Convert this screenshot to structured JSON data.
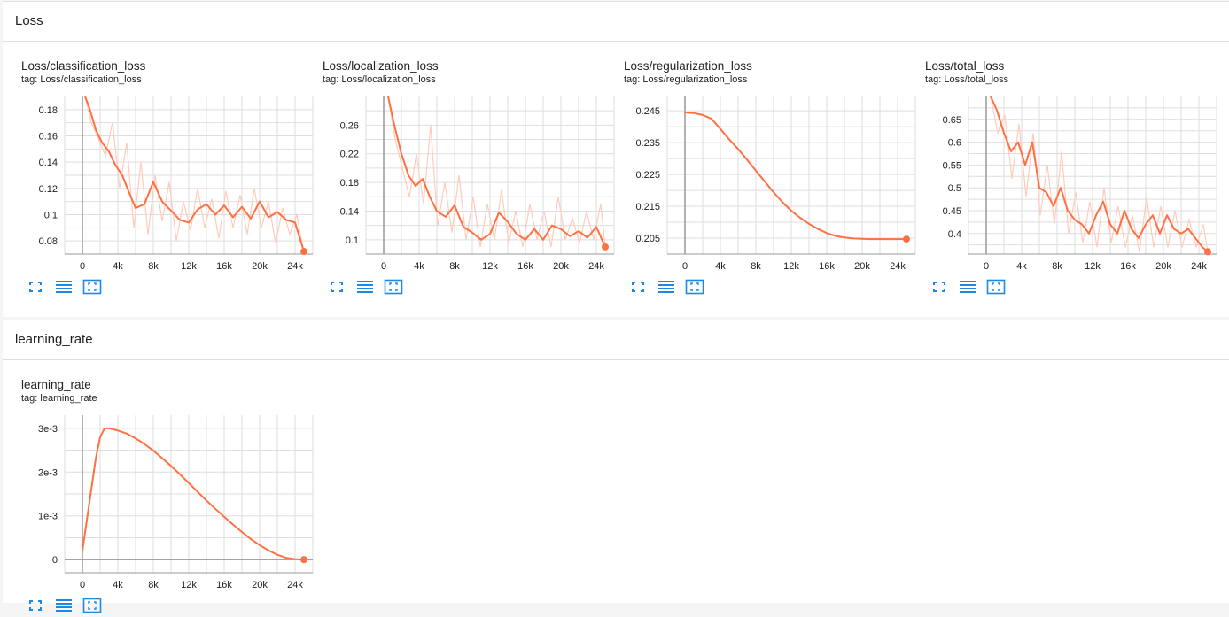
{
  "sections": [
    {
      "title": "Loss",
      "cards": [
        {
          "title": "Loss/classification_loss",
          "tag": "tag: Loss/classification_loss",
          "chart_data": {
            "type": "line",
            "x_ticks": [
              0,
              4000,
              8000,
              12000,
              16000,
              20000,
              24000
            ],
            "x_tick_labels": [
              "0",
              "4k",
              "8k",
              "12k",
              "16k",
              "20k",
              "24k"
            ],
            "xlim": [
              -2000,
              26000
            ],
            "y_ticks": [
              0.08,
              0.1,
              0.12,
              0.14,
              0.16,
              0.18
            ],
            "y_tick_labels": [
              "0.08",
              "0.1",
              "0.12",
              "0.14",
              "0.16",
              "0.18"
            ],
            "ylim": [
              0.07,
              0.19
            ],
            "grid": true,
            "smoothed": {
              "x": [
                300,
                800,
                1500,
                2200,
                3000,
                3700,
                4500,
                5200,
                6000,
                7000,
                8000,
                9000,
                10000,
                11000,
                12000,
                13000,
                14000,
                15000,
                16000,
                17000,
                18000,
                19000,
                20000,
                21000,
                22000,
                23000,
                24000,
                25000
              ],
              "y": [
                0.19,
                0.181,
                0.165,
                0.155,
                0.148,
                0.138,
                0.13,
                0.118,
                0.105,
                0.108,
                0.125,
                0.11,
                0.103,
                0.096,
                0.094,
                0.104,
                0.108,
                0.1,
                0.107,
                0.098,
                0.106,
                0.097,
                0.11,
                0.098,
                0.102,
                0.096,
                0.094,
                0.072
              ]
            },
            "raw": {
              "x": [
                300,
                1000,
                1800,
                2600,
                3400,
                4200,
                5000,
                5800,
                6600,
                7400,
                8200,
                9000,
                9800,
                10600,
                11400,
                12200,
                13000,
                13800,
                14600,
                15400,
                16200,
                17000,
                17800,
                18600,
                19400,
                20200,
                21000,
                21800,
                22600,
                23400,
                24200,
                25000
              ],
              "y": [
                0.19,
                0.17,
                0.158,
                0.145,
                0.17,
                0.12,
                0.155,
                0.09,
                0.14,
                0.085,
                0.13,
                0.095,
                0.125,
                0.08,
                0.11,
                0.088,
                0.12,
                0.09,
                0.112,
                0.082,
                0.118,
                0.09,
                0.115,
                0.085,
                0.12,
                0.09,
                0.11,
                0.078,
                0.105,
                0.085,
                0.1,
                0.07
              ]
            }
          }
        },
        {
          "title": "Loss/localization_loss",
          "tag": "tag: Loss/localization_loss",
          "chart_data": {
            "type": "line",
            "x_ticks": [
              0,
              4000,
              8000,
              12000,
              16000,
              20000,
              24000
            ],
            "x_tick_labels": [
              "0",
              "4k",
              "8k",
              "12k",
              "16k",
              "20k",
              "24k"
            ],
            "xlim": [
              -2000,
              26000
            ],
            "y_ticks": [
              0.1,
              0.14,
              0.18,
              0.22,
              0.26
            ],
            "y_tick_labels": [
              "0.1",
              "0.14",
              "0.18",
              "0.22",
              "0.26"
            ],
            "ylim": [
              0.08,
              0.3
            ],
            "grid": true,
            "smoothed": {
              "x": [
                500,
                1200,
                2000,
                2800,
                3600,
                4400,
                5200,
                6000,
                7000,
                8000,
                9000,
                10000,
                11000,
                12000,
                13000,
                14000,
                15000,
                16000,
                17000,
                18000,
                19000,
                20000,
                21000,
                22000,
                23000,
                24000,
                25000
              ],
              "y": [
                0.3,
                0.26,
                0.22,
                0.19,
                0.175,
                0.185,
                0.16,
                0.14,
                0.132,
                0.148,
                0.118,
                0.11,
                0.1,
                0.108,
                0.138,
                0.125,
                0.108,
                0.1,
                0.115,
                0.1,
                0.12,
                0.115,
                0.105,
                0.112,
                0.103,
                0.118,
                0.09
              ]
            },
            "raw": {
              "x": [
                500,
                1300,
                2100,
                2900,
                3700,
                4500,
                5300,
                6100,
                6900,
                7700,
                8500,
                9300,
                10100,
                10900,
                11700,
                12500,
                13300,
                14100,
                14900,
                15700,
                16500,
                17300,
                18100,
                18900,
                19700,
                20500,
                21300,
                22100,
                22900,
                23700,
                24500,
                25000
              ],
              "y": [
                0.3,
                0.24,
                0.2,
                0.16,
                0.22,
                0.15,
                0.26,
                0.12,
                0.18,
                0.11,
                0.19,
                0.1,
                0.16,
                0.09,
                0.15,
                0.1,
                0.17,
                0.095,
                0.14,
                0.09,
                0.15,
                0.1,
                0.14,
                0.09,
                0.16,
                0.1,
                0.13,
                0.095,
                0.14,
                0.1,
                0.15,
                0.09
              ]
            }
          }
        },
        {
          "title": "Loss/regularization_loss",
          "tag": "tag: Loss/regularization_loss",
          "chart_data": {
            "type": "line",
            "x_ticks": [
              0,
              4000,
              8000,
              12000,
              16000,
              20000,
              24000
            ],
            "x_tick_labels": [
              "0",
              "4k",
              "8k",
              "12k",
              "16k",
              "20k",
              "24k"
            ],
            "xlim": [
              -2000,
              26000
            ],
            "y_ticks": [
              0.205,
              0.215,
              0.225,
              0.235,
              0.245
            ],
            "y_tick_labels": [
              "0.205",
              "0.215",
              "0.225",
              "0.235",
              "0.245"
            ],
            "ylim": [
              0.2,
              0.2495
            ],
            "grid": true,
            "smoothed": {
              "x": [
                0,
                1000,
                2000,
                3000,
                4000,
                5000,
                6000,
                7000,
                8000,
                9000,
                10000,
                11000,
                12000,
                13000,
                14000,
                15000,
                16000,
                17000,
                18000,
                19000,
                20000,
                21000,
                22000,
                23000,
                24000,
                25000
              ],
              "y": [
                0.2445,
                0.2443,
                0.2437,
                0.2425,
                0.2393,
                0.236,
                0.233,
                0.2297,
                0.2262,
                0.2228,
                0.2194,
                0.2163,
                0.2136,
                0.2114,
                0.2095,
                0.2079,
                0.2066,
                0.2057,
                0.2052,
                0.2049,
                0.2048,
                0.2047,
                0.2047,
                0.2047,
                0.2047,
                0.2047
              ]
            }
          }
        },
        {
          "title": "Loss/total_loss",
          "tag": "tag: Loss/total_loss",
          "chart_data": {
            "type": "line",
            "x_ticks": [
              0,
              4000,
              8000,
              12000,
              16000,
              20000,
              24000
            ],
            "x_tick_labels": [
              "0",
              "4k",
              "8k",
              "12k",
              "16k",
              "20k",
              "24k"
            ],
            "xlim": [
              -2000,
              26000
            ],
            "y_ticks": [
              0.4,
              0.45,
              0.5,
              0.55,
              0.6,
              0.65
            ],
            "y_tick_labels": [
              "0.4",
              "0.45",
              "0.5",
              "0.55",
              "0.6",
              "0.65"
            ],
            "ylim": [
              0.355,
              0.7
            ],
            "grid": true,
            "smoothed": {
              "x": [
                500,
                1200,
                2000,
                2800,
                3600,
                4400,
                5200,
                6000,
                6800,
                7600,
                8400,
                9200,
                10000,
                10800,
                11600,
                12400,
                13200,
                14000,
                14800,
                15600,
                16400,
                17200,
                18000,
                18800,
                19600,
                20400,
                21200,
                22000,
                22800,
                23600,
                24400,
                25000
              ],
              "y": [
                0.7,
                0.67,
                0.62,
                0.58,
                0.6,
                0.55,
                0.6,
                0.5,
                0.49,
                0.46,
                0.5,
                0.45,
                0.43,
                0.42,
                0.4,
                0.44,
                0.47,
                0.42,
                0.4,
                0.45,
                0.41,
                0.39,
                0.42,
                0.44,
                0.4,
                0.44,
                0.41,
                0.4,
                0.41,
                0.39,
                0.37,
                0.36
              ]
            },
            "raw": {
              "x": [
                500,
                1300,
                2100,
                2900,
                3700,
                4500,
                5300,
                6100,
                6900,
                7700,
                8500,
                9300,
                10100,
                10900,
                11700,
                12500,
                13300,
                14100,
                14900,
                15700,
                16500,
                17300,
                18100,
                18900,
                19700,
                20500,
                21300,
                22100,
                22900,
                23700,
                24500,
                25000
              ],
              "y": [
                0.7,
                0.62,
                0.66,
                0.52,
                0.64,
                0.48,
                0.62,
                0.44,
                0.55,
                0.42,
                0.58,
                0.4,
                0.49,
                0.38,
                0.47,
                0.37,
                0.5,
                0.38,
                0.46,
                0.37,
                0.44,
                0.36,
                0.48,
                0.37,
                0.46,
                0.37,
                0.45,
                0.37,
                0.43,
                0.37,
                0.42,
                0.36
              ]
            }
          }
        }
      ]
    },
    {
      "title": "learning_rate",
      "cards": [
        {
          "title": "learning_rate",
          "tag": "tag: learning_rate",
          "chart_data": {
            "type": "line",
            "x_ticks": [
              0,
              4000,
              8000,
              12000,
              16000,
              20000,
              24000
            ],
            "x_tick_labels": [
              "0",
              "4k",
              "8k",
              "12k",
              "16k",
              "20k",
              "24k"
            ],
            "xlim": [
              -2000,
              26000
            ],
            "y_ticks": [
              0,
              0.001,
              0.002,
              0.003
            ],
            "y_tick_labels": [
              "0",
              "1e-3",
              "2e-3",
              "3e-3"
            ],
            "ylim": [
              -0.0003,
              0.0033
            ],
            "grid": true,
            "smoothed": {
              "x": [
                0,
                500,
                1000,
                1500,
                2000,
                2500,
                3000,
                4000,
                5000,
                6000,
                7000,
                8000,
                9000,
                10000,
                11000,
                12000,
                13000,
                14000,
                15000,
                16000,
                17000,
                18000,
                19000,
                20000,
                21000,
                22000,
                23000,
                24000,
                25000
              ],
              "y": [
                0.0002,
                0.0009,
                0.0016,
                0.0023,
                0.0028,
                0.003,
                0.003,
                0.00295,
                0.00288,
                0.00277,
                0.00264,
                0.00249,
                0.00232,
                0.00214,
                0.00195,
                0.00175,
                0.00155,
                0.00135,
                0.00116,
                0.00098,
                0.0008,
                0.00063,
                0.00047,
                0.00033,
                0.00021,
                0.00011,
                4e-05,
                1e-05,
                0
              ]
            }
          }
        }
      ]
    }
  ],
  "colors": {
    "line": "#ff7043",
    "raw_line": "#ffccbc",
    "grid": "#dedede",
    "axis": "#999999",
    "button": "#1e88e5"
  },
  "buttons": [
    "fullscreen-icon",
    "data-table-icon",
    "fit-domain-icon"
  ]
}
